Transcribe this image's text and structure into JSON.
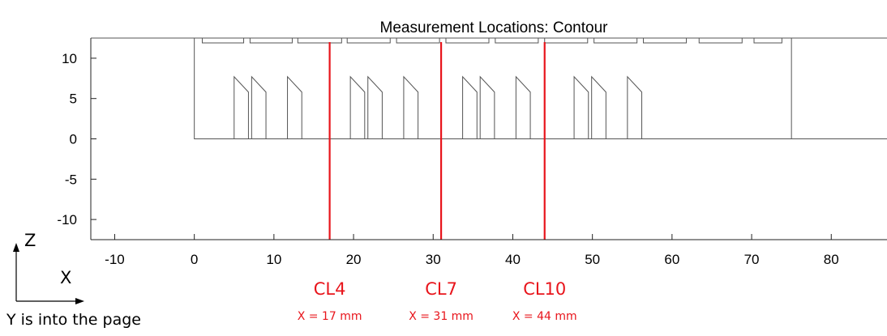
{
  "chart_data": {
    "type": "line",
    "title": "Measurement Locations: Contour",
    "xlabel": "",
    "ylabel": "",
    "xlim": [
      -13,
      87
    ],
    "ylim": [
      -12.5,
      12.5
    ],
    "xticks": [
      -10,
      0,
      10,
      20,
      30,
      40,
      50,
      60,
      70,
      80
    ],
    "yticks": [
      -10,
      -5,
      0,
      5,
      10
    ],
    "grid": false,
    "outline": {
      "polyline": [
        [
          0,
          12.5
        ],
        [
          0,
          0
        ],
        [
          87,
          0
        ]
      ],
      "right_wall": [
        [
          75,
          12.5
        ],
        [
          75,
          0
        ]
      ]
    },
    "top_plates": [
      [
        1,
        6.2
      ],
      [
        7,
        12.3
      ],
      [
        13,
        18.5
      ],
      [
        19.2,
        24.6
      ],
      [
        25.4,
        30.8
      ],
      [
        31.6,
        37.0
      ],
      [
        37.8,
        43.2
      ],
      [
        44.0,
        49.4
      ],
      [
        50.2,
        55.6
      ],
      [
        56.4,
        61.8
      ],
      [
        63.4,
        68.8
      ],
      [
        70.3,
        73.8
      ]
    ],
    "fins": [
      5,
      7.2,
      11.7,
      19.6,
      21.8,
      26.3,
      33.7,
      35.9,
      40.4,
      47.7,
      49.9,
      54.4
    ],
    "fin_shape": {
      "base_width": 1.8,
      "height": 7.7,
      "shoulder": 5.8
    },
    "cut_lines": [
      {
        "name": "CL4",
        "x": 17,
        "label": "X = 17 mm"
      },
      {
        "name": "CL7",
        "x": 31,
        "label": "X = 31 mm"
      },
      {
        "name": "CL10",
        "x": 44,
        "label": "X = 44 mm"
      }
    ],
    "colors": {
      "cut_line": "#e8141b",
      "geometry": "#555555",
      "axes": "#222222"
    }
  },
  "axes_caption": {
    "z_label": "Z",
    "x_label": "X",
    "note": "Y is into the page"
  }
}
